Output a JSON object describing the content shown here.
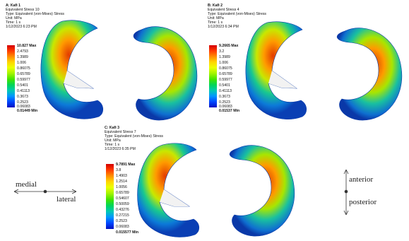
{
  "panels": [
    {
      "id": "A",
      "title": "A: Kafi 1",
      "lines": [
        "Equivalent Stress 10",
        "Type: Equivalent (von-Mises) Stress",
        "Unit: MPa",
        "Time: 1 s",
        "1/12/2023 6:23 PM"
      ],
      "max": "10.827 Max",
      "min": "0.01449 Min",
      "ticks": [
        "2.4793",
        "1.3989",
        "1.006",
        "0.86075",
        "0.65789",
        "0.59977",
        "0.5401",
        "0.41113",
        "0.3673",
        "0.2523",
        "0.06083"
      ]
    },
    {
      "id": "B",
      "title": "B: Kafi 2",
      "lines": [
        "Equivalent Stress 4",
        "Type: Equivalent (von-Mises) Stress",
        "Unit: MPa",
        "Time: 1 s",
        "1/12/2023 6:34 PM"
      ],
      "max": "9.2665 Max",
      "min": "0.01537 Min",
      "ticks": [
        "3.2",
        "1.3989",
        "1.006",
        "0.86075",
        "0.65789",
        "0.59977",
        "0.5401",
        "0.41113",
        "0.3673",
        "0.2523",
        "0.06083"
      ]
    },
    {
      "id": "C",
      "title": "C: Kafi 3",
      "lines": [
        "Equivalent Stress 7",
        "Type: Equivalent (von-Mises) Stress",
        "Unit: MPa",
        "Time: 1 s",
        "1/12/2023 6:35 PM"
      ],
      "max": "9.7891 Max",
      "min": "0.015577 Min",
      "ticks": [
        "3.8",
        "1.4903",
        "1.2514",
        "1.0056",
        "0.65789",
        "0.54607",
        "0.50059",
        "0.43276",
        "0.27215",
        "0.2523",
        "0.06083"
      ]
    }
  ],
  "legend_colors": [
    "#d40000",
    "#ff3a00",
    "#ff8c00",
    "#ffd400",
    "#ebff00",
    "#a6f500",
    "#41e400",
    "#00d55a",
    "#00c8b4",
    "#0096ff",
    "#0046ff",
    "#0010c0"
  ],
  "orientation": {
    "medial": "medial",
    "lateral": "lateral",
    "anterior": "anterior",
    "posterior": "posterior"
  }
}
